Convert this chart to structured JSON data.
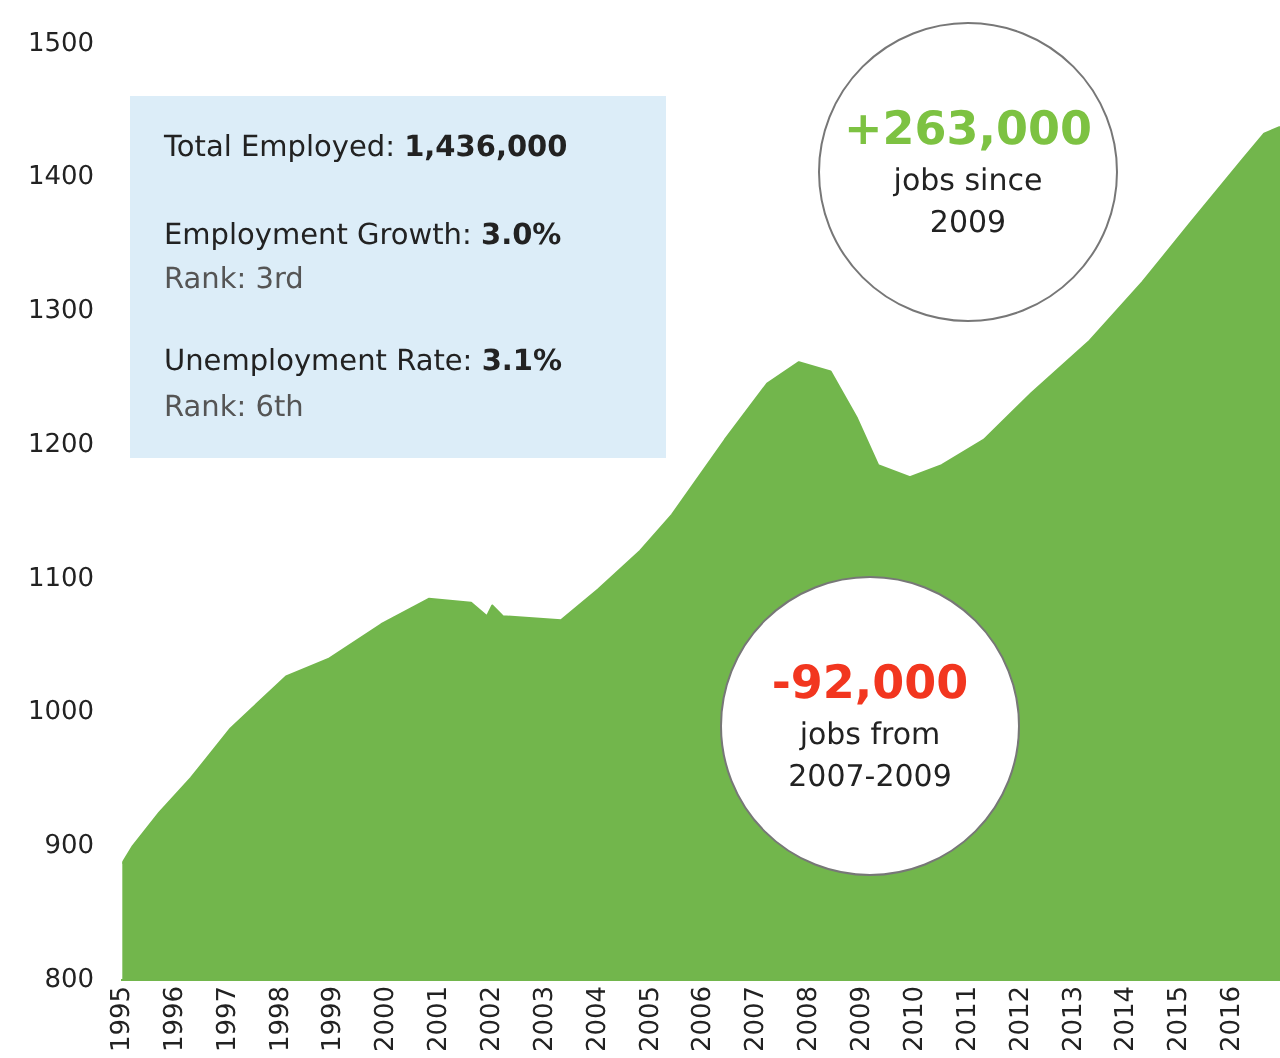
{
  "chart_data": {
    "type": "area",
    "x": [
      1995.0,
      1995.2,
      1995.7,
      1996.3,
      1997.05,
      1998.1,
      1998.9,
      1999.9,
      2000.8,
      2001.6,
      2001.9,
      2002.0,
      2002.2,
      2003.3,
      2004.0,
      2004.8,
      2005.4,
      2006.4,
      2007.2,
      2007.8,
      2008.4,
      2008.9,
      2009.3,
      2009.9,
      2010.5,
      2011.3,
      2012.2,
      2013.3,
      2014.3,
      2015.2,
      2016.2,
      2016.6,
      2016.9
    ],
    "values": [
      887,
      900,
      925,
      951,
      988,
      1027,
      1040,
      1066,
      1085,
      1082,
      1072,
      1080,
      1072,
      1069,
      1092,
      1121,
      1148,
      1204,
      1246,
      1262,
      1255,
      1220,
      1185,
      1176,
      1185,
      1204,
      1239,
      1278,
      1322,
      1366,
      1414,
      1433,
      1438
    ],
    "color": "#72b64c",
    "xlim": [
      1995,
      2016.9
    ],
    "xticks": [
      1995,
      1996,
      1997,
      1998,
      1999,
      2000,
      2001,
      2002,
      2003,
      2004,
      2005,
      2006,
      2007,
      2008,
      2009,
      2010,
      2011,
      2012,
      2013,
      2014,
      2015,
      2016
    ],
    "ylim": [
      800,
      1500
    ],
    "yticks": [
      800,
      900,
      1000,
      1100,
      1200,
      1300,
      1400,
      1500
    ],
    "grid": false,
    "legend": false,
    "marker": "none",
    "annotations": [
      "Total Employed: 1,436,000",
      "Employment Growth: 3.0%",
      "Rank: 3rd",
      "Unemployment Rate: 3.1%",
      "Rank: 6th",
      "+263,000",
      "jobs since 2009",
      "-92,000",
      "jobs from 2007-2009"
    ]
  }
}
